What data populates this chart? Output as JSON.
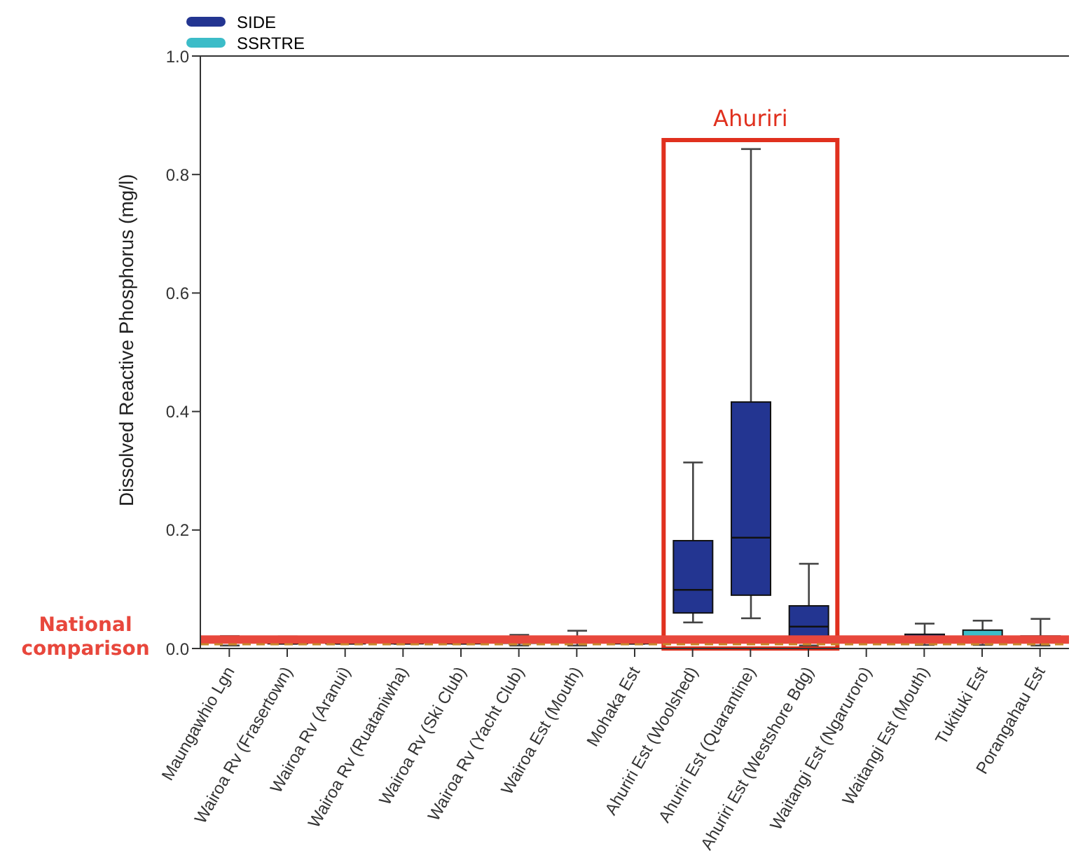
{
  "chart_data": {
    "type": "box",
    "ylabel": "Dissolved Reactive Phosphorus (mg/l)",
    "categories": [
      "Maungawhio Lgn",
      "Wairoa Rv (Frasertown)",
      "Wairoa Rv (Aranui)",
      "Wairoa Rv (Ruataniwha)",
      "Wairoa Rv (Ski Club)",
      "Wairoa Rv (Yacht Club)",
      "Wairoa Est (Mouth)",
      "Mohaka Est",
      "Ahuriri Est (Woolshed)",
      "Ahuriri Est (Quarantine)",
      "Ahuriri Est (Westshore Bdg)",
      "Waitangi Est (Ngaruroro)",
      "Waitangi Est (Mouth)",
      "Tukituki Est",
      "Porangahau Est"
    ],
    "series": [
      {
        "name": "SIDE",
        "color": "#233591",
        "boxes": [
          {
            "low": 0.005,
            "q1": 0.01,
            "median": 0.013,
            "q3": 0.017,
            "high": 0.021
          },
          {
            "low": 0.008,
            "q1": 0.008,
            "median": 0.011,
            "q3": 0.015,
            "high": 0.02
          },
          {
            "low": 0.008,
            "q1": 0.008,
            "median": 0.01,
            "q3": 0.014,
            "high": 0.018
          },
          {
            "low": 0.008,
            "q1": 0.008,
            "median": 0.011,
            "q3": 0.015,
            "high": 0.019
          },
          {
            "low": 0.008,
            "q1": 0.008,
            "median": 0.011,
            "q3": 0.015,
            "high": 0.019
          },
          {
            "low": 0.005,
            "q1": 0.009,
            "median": 0.012,
            "q3": 0.016,
            "high": 0.023
          },
          {
            "low": 0.005,
            "q1": 0.01,
            "median": 0.013,
            "q3": 0.018,
            "high": 0.03
          },
          {
            "low": 0.008,
            "q1": 0.008,
            "median": 0.01,
            "q3": 0.014,
            "high": 0.018
          },
          {
            "low": 0.044,
            "q1": 0.06,
            "median": 0.099,
            "q3": 0.182,
            "high": 0.314
          },
          {
            "low": 0.051,
            "q1": 0.09,
            "median": 0.187,
            "q3": 0.416,
            "high": 0.843
          },
          {
            "low": 0.005,
            "q1": 0.012,
            "median": 0.037,
            "q3": 0.072,
            "high": 0.143
          },
          null,
          {
            "low": 0.006,
            "q1": 0.012,
            "median": 0.016,
            "q3": 0.024,
            "high": 0.042
          },
          null,
          {
            "low": 0.005,
            "q1": 0.011,
            "median": 0.015,
            "q3": 0.021,
            "high": 0.05
          }
        ]
      },
      {
        "name": "SSRTRE",
        "color": "#3cbcc8",
        "boxes": [
          null,
          null,
          null,
          null,
          null,
          null,
          null,
          null,
          null,
          null,
          null,
          null,
          null,
          {
            "low": 0.006,
            "q1": 0.013,
            "median": 0.018,
            "q3": 0.031,
            "high": 0.047
          },
          null
        ]
      }
    ],
    "ylim": [
      0,
      1
    ],
    "yticks": [
      {
        "value": 0,
        "label": "0.0"
      },
      {
        "value": 0.2,
        "label": "0.2"
      },
      {
        "value": 0.4,
        "label": "0.4"
      },
      {
        "value": 0.6,
        "label": "0.6"
      },
      {
        "value": 0.8,
        "label": "0.8"
      },
      {
        "value": 1,
        "label": "1.0"
      }
    ],
    "ref_lines": [
      {
        "axis": "y",
        "value": 0.015,
        "label": "National comparison",
        "color": "#e8473c"
      },
      {
        "axis": "y",
        "value": 0.007,
        "label": null,
        "color": "#c8862a",
        "line_style": "dashed"
      }
    ],
    "annotations": [
      "Ahuriri"
    ],
    "legend": "top left",
    "grid": false
  }
}
